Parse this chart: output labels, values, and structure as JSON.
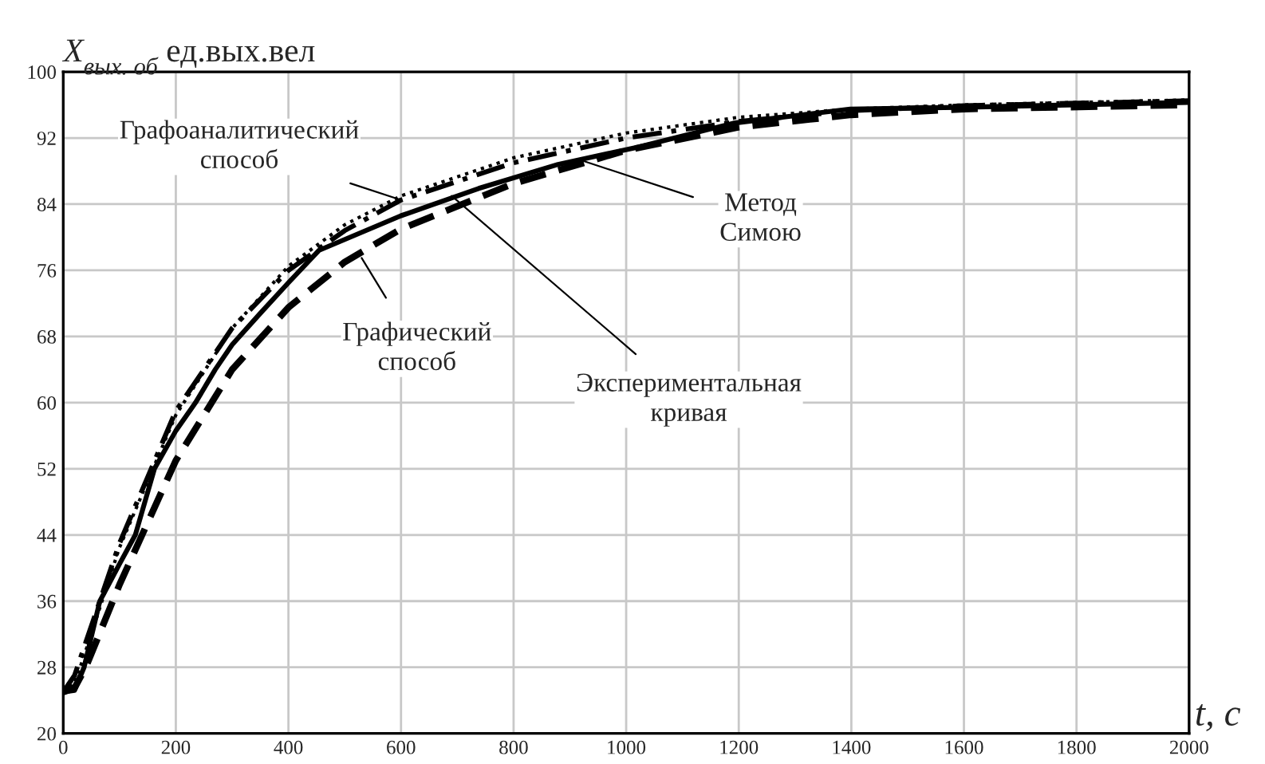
{
  "chart_data": {
    "type": "line",
    "ylabel": "X$_{вых. об}$ ед.вых.вел",
    "xlabel": "t, с",
    "xlim": [
      0,
      2000
    ],
    "ylim": [
      20,
      100
    ],
    "xticks": [
      0,
      200,
      400,
      600,
      800,
      1000,
      1200,
      1400,
      1600,
      1800,
      2000
    ],
    "yticks": [
      20,
      28,
      36,
      44,
      52,
      60,
      68,
      76,
      84,
      92,
      100
    ],
    "grid": true,
    "legend": false,
    "series": [
      {
        "color": "#000000",
        "line_style": "solid",
        "x": [
          0,
          20,
          37,
          65,
          100,
          128,
          162,
          200,
          235,
          270,
          300,
          350,
          400,
          454,
          600,
          738,
          879,
          1021,
          1191,
          1398,
          1589,
          2000
        ],
        "values": [
          25,
          25.2,
          28,
          36,
          40.5,
          44,
          52,
          56.6,
          60,
          64,
          67,
          70.8,
          74.5,
          78.4,
          82.6,
          85.9,
          88.8,
          90.9,
          93.8,
          95.5,
          95.7,
          96.3
        ]
      },
      {
        "color": "#000000",
        "line_style": "dashdot",
        "x": [
          0,
          20,
          40,
          100,
          200,
          300,
          400,
          500,
          600,
          800,
          1000,
          1200,
          1400,
          1600,
          2000
        ],
        "values": [
          25,
          27,
          31,
          43,
          59,
          69,
          76,
          80.8,
          84.5,
          89,
          92,
          94,
          95.3,
          95.9,
          96.5
        ]
      },
      {
        "color": "#000000",
        "line_style": "dotted",
        "x": [
          0,
          20,
          40,
          100,
          200,
          300,
          400,
          500,
          600,
          800,
          1000,
          1200,
          1400,
          1600,
          2000
        ],
        "values": [
          25,
          26,
          30,
          42.5,
          58.5,
          69,
          76.5,
          81.5,
          85,
          89.6,
          92.6,
          94.5,
          95.5,
          96,
          96.6
        ]
      },
      {
        "color": "#000000",
        "line_style": "dashed",
        "x": [
          0,
          20,
          40,
          100,
          200,
          300,
          400,
          500,
          600,
          800,
          1000,
          1200,
          1400,
          1600,
          2000
        ],
        "values": [
          25,
          25.5,
          28,
          38,
          53,
          64,
          71.5,
          77,
          81,
          86.5,
          90.5,
          93.3,
          94.8,
          95.5,
          96
        ]
      }
    ],
    "annotations": [
      {
        "text": "Графоаналитический\nспособ",
        "x": 600,
        "y": 84.5
      },
      {
        "text": "Экспериментальная\nкривая",
        "x": 690,
        "y": 85
      },
      {
        "text": "Метод\nСимою",
        "x": 916,
        "y": 89.4
      },
      {
        "text": "Графический\nспособ",
        "x": 530,
        "y": 77.5
      }
    ]
  }
}
